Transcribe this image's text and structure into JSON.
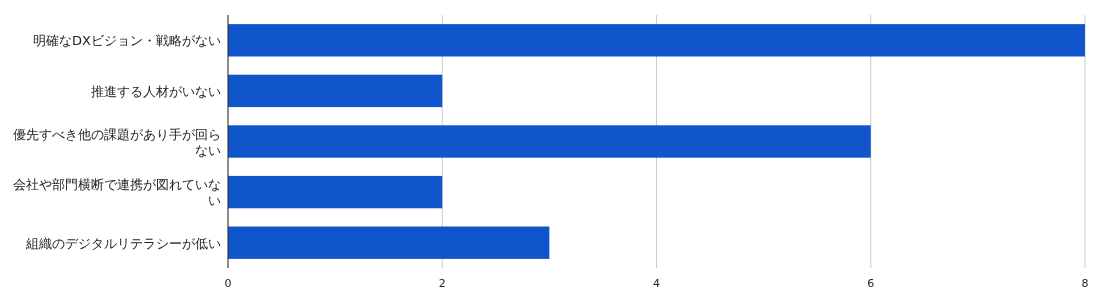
{
  "chart_data": {
    "type": "bar",
    "orientation": "horizontal",
    "categories": [
      "明確なDXビジョン・戦略がない",
      "推進する人材がいない",
      "優先すべき他の課題があり手が回らない",
      "会社や部門横断で連携が図れていない",
      "組織のデジタルリテラシーが低い"
    ],
    "values": [
      8,
      2,
      6,
      2,
      3
    ],
    "color": "#1155cc",
    "xlim": [
      0,
      8
    ],
    "xticks": [
      0,
      2,
      4,
      6,
      8
    ],
    "grid": "x"
  }
}
